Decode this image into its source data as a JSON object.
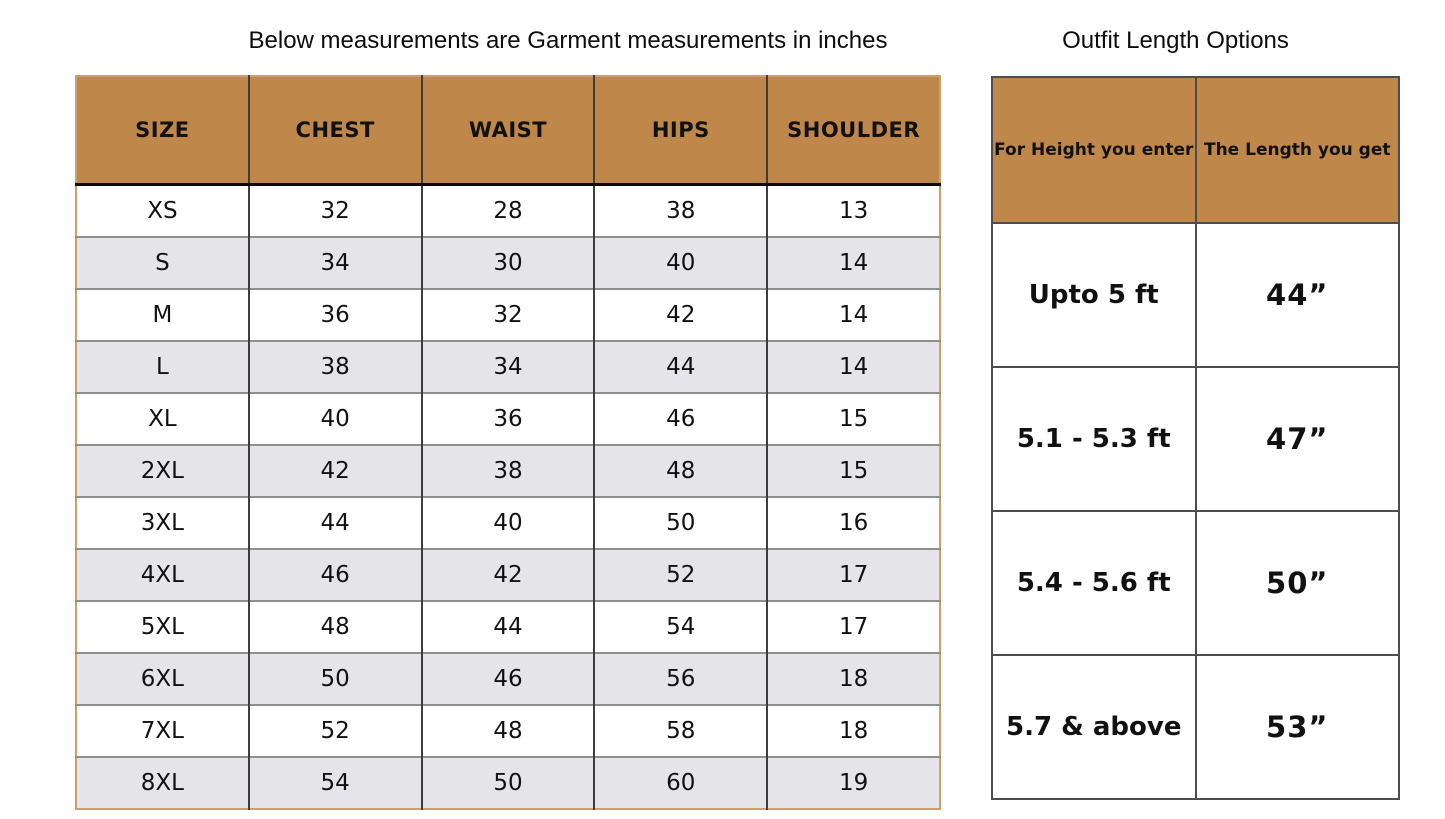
{
  "colors": {
    "header_brown": "#c0874a",
    "alt_row_gray": "#e5e5e9",
    "left_outer_border_tan": "#c9a169",
    "grid_dark": "#3d3d3d",
    "grid_gray": "#8f8f8f",
    "right_border_gray": "#4d4d4d"
  },
  "chart_data": [
    {
      "type": "table",
      "title": "Below measurements are Garment measurements in inches",
      "columns": [
        "SIZE",
        "CHEST",
        "WAIST",
        "HIPS",
        "SHOULDER"
      ],
      "rows": [
        [
          "XS",
          "32",
          "28",
          "38",
          "13"
        ],
        [
          "S",
          "34",
          "30",
          "40",
          "14"
        ],
        [
          "M",
          "36",
          "32",
          "42",
          "14"
        ],
        [
          "L",
          "38",
          "34",
          "44",
          "14"
        ],
        [
          "XL",
          "40",
          "36",
          "46",
          "15"
        ],
        [
          "2XL",
          "42",
          "38",
          "48",
          "15"
        ],
        [
          "3XL",
          "44",
          "40",
          "50",
          "16"
        ],
        [
          "4XL",
          "46",
          "42",
          "52",
          "17"
        ],
        [
          "5XL",
          "48",
          "44",
          "54",
          "17"
        ],
        [
          "6XL",
          "50",
          "46",
          "56",
          "18"
        ],
        [
          "7XL",
          "52",
          "48",
          "58",
          "18"
        ],
        [
          "8XL",
          "54",
          "50",
          "60",
          "19"
        ]
      ],
      "layout_hints": {
        "striped": true,
        "first_row_white": true,
        "header_bg": "#c0874a"
      }
    },
    {
      "type": "table",
      "title": "Outfit Length Options",
      "columns": [
        "For Height you enter",
        "The Length you get"
      ],
      "rows": [
        [
          "Upto 5 ft",
          "44”"
        ],
        [
          "5.1 - 5.3 ft",
          "47”"
        ],
        [
          "5.4 - 5.6 ft",
          "50”"
        ],
        [
          "5.7 & above",
          "53”"
        ]
      ],
      "layout_hints": {
        "striped": false,
        "header_bg": "#c0874a"
      }
    }
  ]
}
